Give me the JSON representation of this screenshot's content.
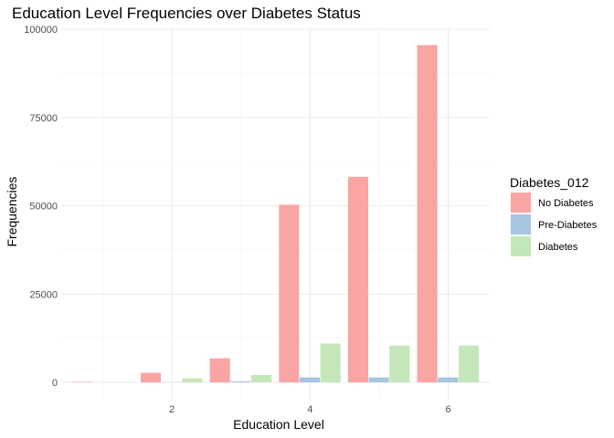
{
  "chart_data": {
    "type": "bar",
    "title": "Education Level Frequencies over Diabetes Status",
    "xlabel": "Education Level",
    "ylabel": "Frequencies",
    "x": [
      1,
      2,
      3,
      4,
      5,
      6
    ],
    "x_ticks": [
      "2",
      "4",
      "6"
    ],
    "y_ticks": [
      "0",
      "25000",
      "50000",
      "75000",
      "100000"
    ],
    "ylim": [
      0,
      100000
    ],
    "xlim": [
      0.4,
      6.6
    ],
    "grid": true,
    "legend": {
      "title": "Diabetes_012",
      "position": "right"
    },
    "series": [
      {
        "name": "No Diabetes",
        "color": "#f8a5a3",
        "values": [
          150,
          2700,
          6800,
          50300,
          58200,
          95500
        ]
      },
      {
        "name": "Pre-Diabetes",
        "color": "#a7c4e0",
        "values": [
          0,
          60,
          300,
          1400,
          1400,
          1400
        ]
      },
      {
        "name": "Diabetes",
        "color": "#c3e7b8",
        "values": [
          40,
          1100,
          2100,
          11000,
          10400,
          10400
        ]
      }
    ]
  }
}
